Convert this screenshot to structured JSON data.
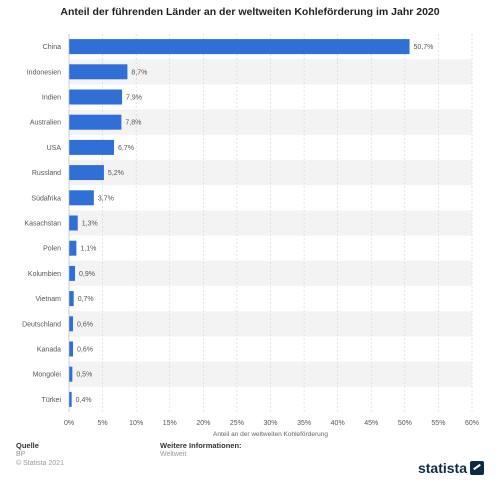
{
  "chart_data": {
    "type": "bar",
    "orientation": "horizontal",
    "title": "Anteil der führenden Länder an der weltweiten Kohleförderung im Jahr 2020",
    "xlabel": "Anteil an der weltweiten Kohleförderung",
    "ylabel": "",
    "categories": [
      "China",
      "Indonesien",
      "Indien",
      "Australien",
      "USA",
      "Russland",
      "Südafrika",
      "Kasachstan",
      "Polen",
      "Kolumbien",
      "Vietnam",
      "Deutschland",
      "Kanada",
      "Mongolei",
      "Türkei"
    ],
    "values": [
      50.7,
      8.7,
      7.9,
      7.8,
      6.7,
      5.2,
      3.7,
      1.3,
      1.1,
      0.9,
      0.7,
      0.6,
      0.6,
      0.5,
      0.4
    ],
    "value_labels": [
      "50,7%",
      "8,7%",
      "7,9%",
      "7,8%",
      "6,7%",
      "5,2%",
      "3,7%",
      "1,3%",
      "1,1%",
      "0,9%",
      "0,7%",
      "0,6%",
      "0,6%",
      "0,5%",
      "0,4%"
    ],
    "xlim": [
      0,
      60
    ],
    "ticks": [
      0,
      5,
      10,
      15,
      20,
      25,
      30,
      35,
      40,
      45,
      50,
      55,
      60
    ],
    "tick_labels": [
      "0%",
      "5%",
      "10%",
      "15%",
      "20%",
      "25%",
      "30%",
      "35%",
      "40%",
      "45%",
      "50%",
      "55%",
      "60%"
    ],
    "bar_color": "#2f6fd6",
    "band_color": "#f3f3f3",
    "grid": true
  },
  "footer": {
    "source_heading": "Quelle",
    "source_name": "BP",
    "copyright": "© Statista 2021",
    "info_heading": "Weitere Informationen:",
    "info_text": "Weltweit"
  },
  "logo": {
    "text": "statista",
    "icon": "statista-logo-icon"
  }
}
